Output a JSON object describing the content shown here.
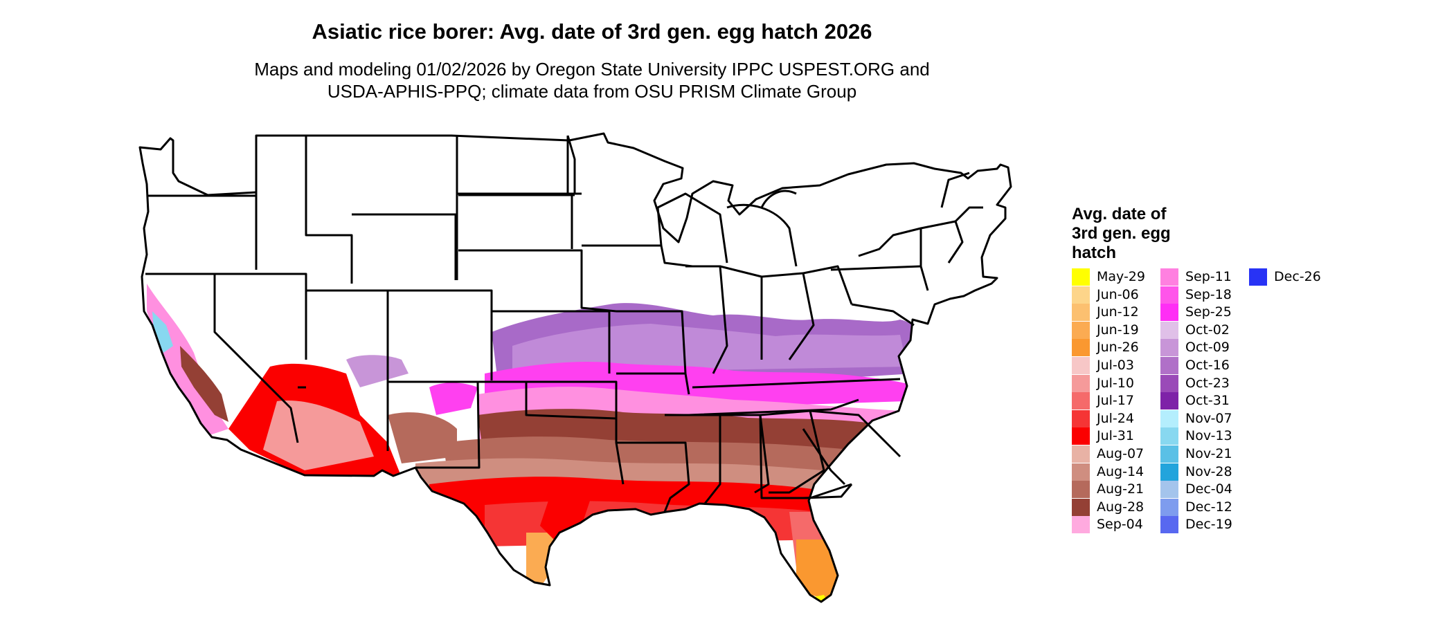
{
  "header": {
    "title": "Asiatic rice borer: Avg. date of 3rd gen. egg hatch 2026",
    "subtitle_line1": "Maps and modeling 01/02/2026 by Oregon State University IPPC USPEST.ORG and",
    "subtitle_line2": "USDA-APHIS-PPQ; climate data from OSU PRISM Climate Group"
  },
  "legend": {
    "title_line1": "Avg. date of",
    "title_line2": "3rd gen. egg",
    "title_line3": "hatch",
    "items": [
      {
        "label": "May-29",
        "color": "#ffff00"
      },
      {
        "label": "Jun-06",
        "color": "#fdd58a"
      },
      {
        "label": "Jun-12",
        "color": "#fcc070"
      },
      {
        "label": "Jun-19",
        "color": "#fbab52"
      },
      {
        "label": "Jun-26",
        "color": "#fa9830"
      },
      {
        "label": "Jul-03",
        "color": "#f7c7c7"
      },
      {
        "label": "Jul-10",
        "color": "#f59a9a"
      },
      {
        "label": "Jul-17",
        "color": "#f56a6a"
      },
      {
        "label": "Jul-24",
        "color": "#f53535"
      },
      {
        "label": "Jul-31",
        "color": "#fb0000"
      },
      {
        "label": "Aug-07",
        "color": "#e8b2a5"
      },
      {
        "label": "Aug-14",
        "color": "#cf8e80"
      },
      {
        "label": "Aug-21",
        "color": "#b56a5c"
      },
      {
        "label": "Aug-28",
        "color": "#944035"
      },
      {
        "label": "Sep-04",
        "color": "#ffaadf"
      },
      {
        "label": "Sep-11",
        "color": "#ff80e0"
      },
      {
        "label": "Sep-18",
        "color": "#ff55ea"
      },
      {
        "label": "Sep-25",
        "color": "#ff2ef5"
      },
      {
        "label": "Oct-02",
        "color": "#e0c0e8"
      },
      {
        "label": "Oct-09",
        "color": "#c895d8"
      },
      {
        "label": "Oct-16",
        "color": "#b070c8"
      },
      {
        "label": "Oct-23",
        "color": "#9a4ab8"
      },
      {
        "label": "Oct-31",
        "color": "#7e22a8"
      },
      {
        "label": "Nov-07",
        "color": "#b4eefd"
      },
      {
        "label": "Nov-13",
        "color": "#88d8f0"
      },
      {
        "label": "Nov-21",
        "color": "#5ac0e6"
      },
      {
        "label": "Nov-28",
        "color": "#22a4dc"
      },
      {
        "label": "Dec-04",
        "color": "#a4c4ec"
      },
      {
        "label": "Dec-12",
        "color": "#7e9cee"
      },
      {
        "label": "Dec-19",
        "color": "#5868f0"
      },
      {
        "label": "Dec-26",
        "color": "#2833f5"
      }
    ]
  }
}
